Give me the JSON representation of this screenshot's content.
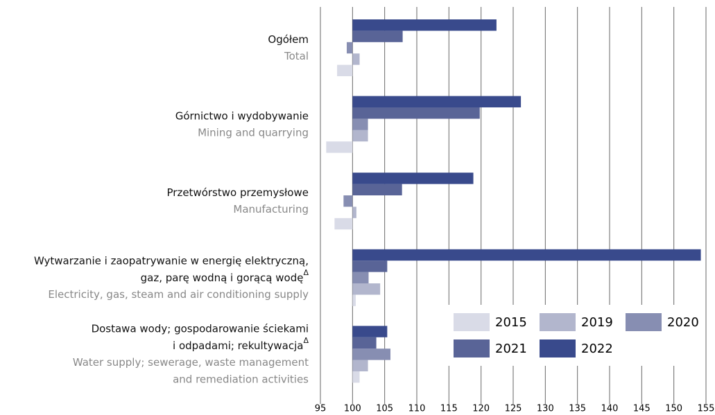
{
  "chart_data": {
    "type": "hbar",
    "categories": [
      [
        "Ogółem"
      ],
      [
        "Górnictwo i wydobywanie"
      ],
      [
        "Przetwórstwo przemysłowe"
      ],
      [
        "Wytwarzanie i zaopatrywanie w energię elektryczną,",
        "gaz, parę wodną i gorącą wodę"
      ],
      [
        "Dostawa wody; gospodarowanie ściekami",
        "i odpadami; rekultywacja"
      ]
    ],
    "footnote_marks": [
      null,
      null,
      null,
      "Δ",
      "Δ"
    ],
    "categories_en": [
      [
        "Total"
      ],
      [
        "Mining and quarrying"
      ],
      [
        "Manufacturing"
      ],
      [
        "Electricity, gas, steam and air conditioning supply"
      ],
      [
        "Water supply; sewerage, waste management",
        "and remediation activities"
      ]
    ],
    "series": [
      {
        "name": "2015",
        "color": "#d9dbe7",
        "values": [
          97.6,
          95.9,
          97.2,
          100.5,
          101.1
        ]
      },
      {
        "name": "2019",
        "color": "#b2b6cd",
        "values": [
          101.1,
          102.4,
          100.6,
          104.3,
          102.4
        ]
      },
      {
        "name": "2020",
        "color": "#878eb2",
        "values": [
          99.1,
          102.4,
          98.6,
          102.5,
          105.9
        ]
      },
      {
        "name": "2021",
        "color": "#596497",
        "values": [
          107.8,
          119.8,
          107.7,
          105.4,
          103.7
        ]
      },
      {
        "name": "2022",
        "color": "#394a8c",
        "values": [
          122.4,
          126.2,
          118.8,
          154.2,
          105.4
        ]
      }
    ],
    "base": 100,
    "xlim": [
      95,
      155
    ],
    "xticks": [
      95,
      100,
      105,
      110,
      115,
      120,
      125,
      130,
      135,
      140,
      145,
      150,
      155
    ],
    "grid": true,
    "legend": "lower right"
  }
}
